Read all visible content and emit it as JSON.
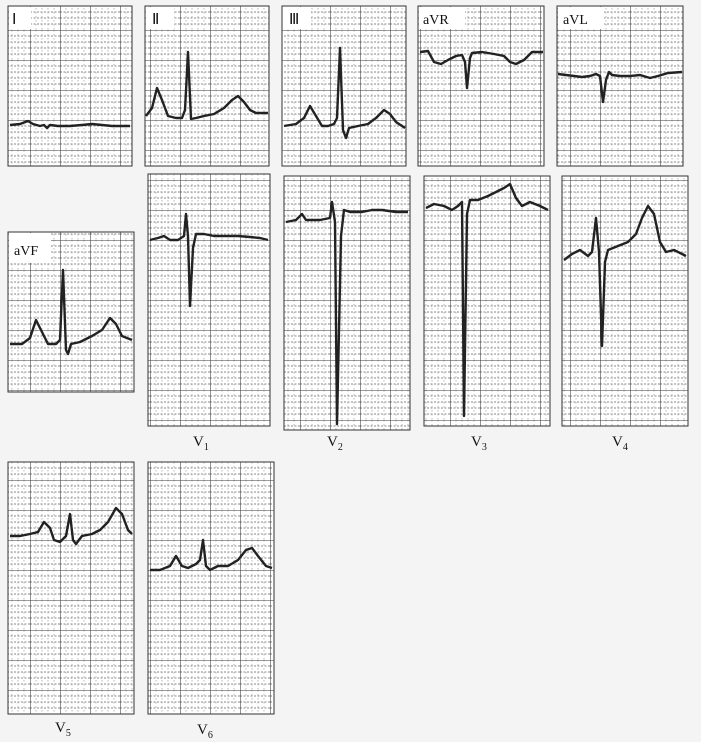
{
  "leads": {
    "I": "Ⅰ",
    "II": "Ⅱ",
    "III": "Ⅲ",
    "aVR": "aVR",
    "aVL": "aVL",
    "aVF": "aVF",
    "V1": "V1",
    "V2": "V2",
    "V3": "V3",
    "V4": "V4",
    "V5": "V5",
    "V6": "V6"
  },
  "colors": {
    "paper": "#ffffff",
    "grid": "#5a5a5a",
    "trace": "#222222",
    "background": "#f4f4f4"
  }
}
